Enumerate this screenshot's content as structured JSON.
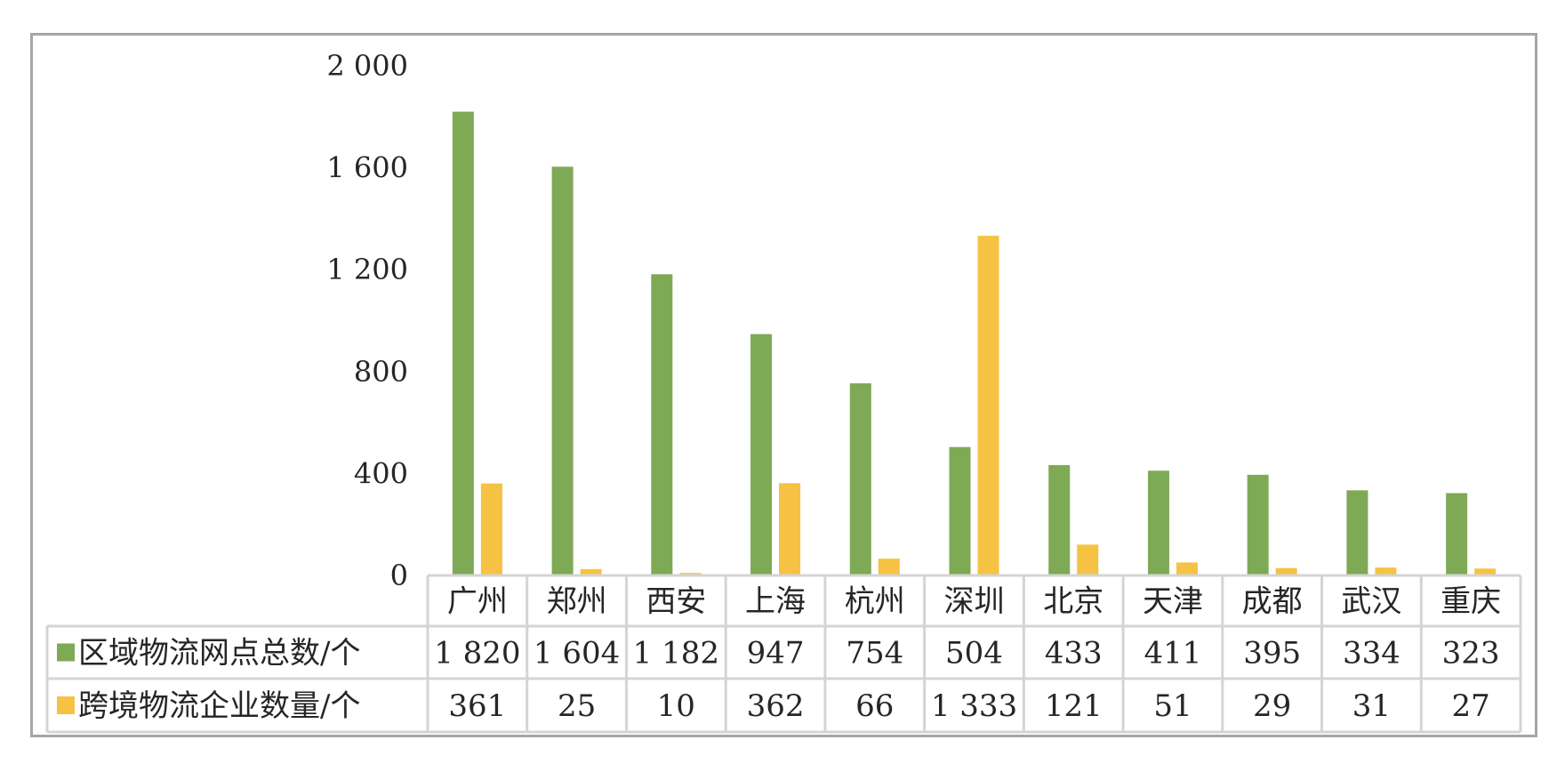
{
  "chart_data": {
    "type": "bar",
    "title": "",
    "xlabel": "",
    "ylabel": "",
    "ylim": [
      0,
      2000
    ],
    "yticks": [
      0,
      400,
      800,
      1200,
      1600,
      2000
    ],
    "ytick_labels": [
      "0",
      "400",
      "800",
      "1 200",
      "1 600",
      "2 000"
    ],
    "grid": false,
    "legend": "data-table",
    "categories": [
      "广州",
      "郑州",
      "西安",
      "上海",
      "杭州",
      "深圳",
      "北京",
      "天津",
      "成都",
      "武汉",
      "重庆"
    ],
    "series": [
      {
        "name": "区域物流网点总数/个",
        "color": "#7ea955",
        "values": [
          1820,
          1604,
          1182,
          947,
          754,
          504,
          433,
          411,
          395,
          334,
          323
        ],
        "labels": [
          "1 820",
          "1 604",
          "1 182",
          "947",
          "754",
          "504",
          "433",
          "411",
          "395",
          "334",
          "323"
        ]
      },
      {
        "name": "跨境物流企业数量/个",
        "color": "#f5c243",
        "values": [
          361,
          25,
          10,
          362,
          66,
          1333,
          121,
          51,
          29,
          31,
          27
        ],
        "labels": [
          "361",
          "25",
          "10",
          "362",
          "66",
          "1 333",
          "121",
          "51",
          "29",
          "31",
          "27"
        ]
      }
    ]
  }
}
